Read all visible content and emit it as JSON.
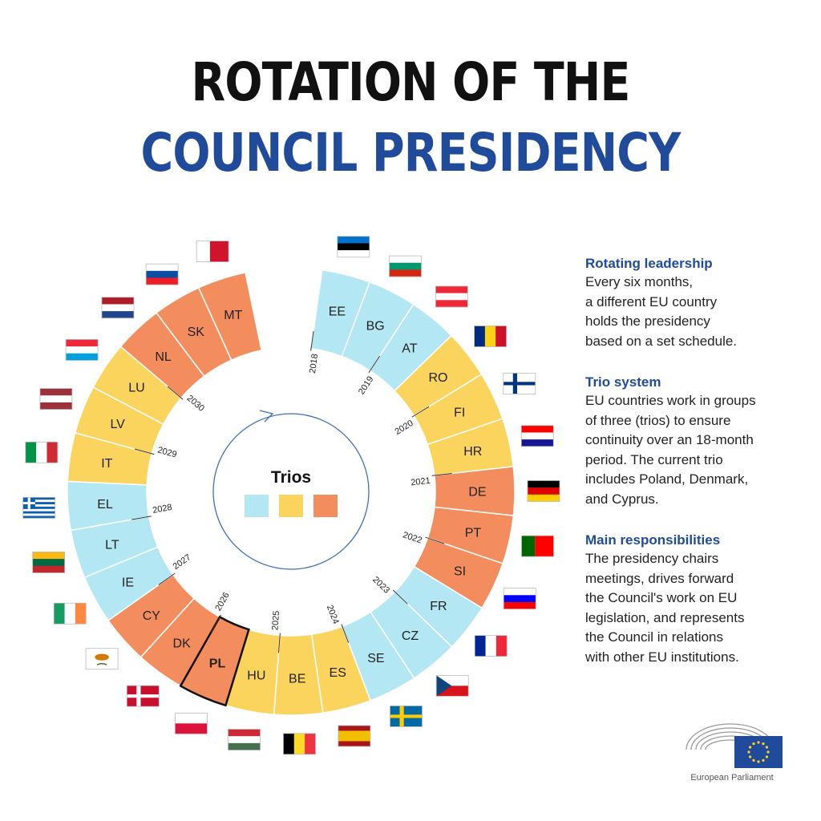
{
  "title": {
    "line1": "ROTATION OF THE",
    "line2": "COUNCIL PRESIDENCY"
  },
  "colors": {
    "blue": "#b3e7f3",
    "yellow": "#fbd45e",
    "orange": "#f48d5e",
    "accent": "#1f4b9a"
  },
  "diagram": {
    "legend_title": "Trios",
    "presidencies": [
      {
        "code": "EE",
        "trio": "blue"
      },
      {
        "code": "BG",
        "trio": "blue"
      },
      {
        "code": "AT",
        "trio": "blue"
      },
      {
        "code": "RO",
        "trio": "yellow"
      },
      {
        "code": "FI",
        "trio": "yellow"
      },
      {
        "code": "HR",
        "trio": "yellow"
      },
      {
        "code": "DE",
        "trio": "orange"
      },
      {
        "code": "PT",
        "trio": "orange"
      },
      {
        "code": "SI",
        "trio": "orange"
      },
      {
        "code": "FR",
        "trio": "blue"
      },
      {
        "code": "CZ",
        "trio": "blue"
      },
      {
        "code": "SE",
        "trio": "blue"
      },
      {
        "code": "ES",
        "trio": "yellow"
      },
      {
        "code": "BE",
        "trio": "yellow"
      },
      {
        "code": "HU",
        "trio": "yellow"
      },
      {
        "code": "PL",
        "trio": "orange",
        "current": true
      },
      {
        "code": "DK",
        "trio": "orange"
      },
      {
        "code": "CY",
        "trio": "orange"
      },
      {
        "code": "IE",
        "trio": "blue"
      },
      {
        "code": "LT",
        "trio": "blue"
      },
      {
        "code": "EL",
        "trio": "blue"
      },
      {
        "code": "IT",
        "trio": "yellow"
      },
      {
        "code": "LV",
        "trio": "yellow"
      },
      {
        "code": "LU",
        "trio": "yellow"
      },
      {
        "code": "NL",
        "trio": "orange"
      },
      {
        "code": "SK",
        "trio": "orange"
      },
      {
        "code": "MT",
        "trio": "orange"
      }
    ],
    "years": [
      "2018",
      "2019",
      "2020",
      "2021",
      "2022",
      "2023",
      "2024",
      "2025",
      "2026",
      "2027",
      "2028",
      "2029",
      "2030"
    ]
  },
  "sidebar": {
    "sections": [
      {
        "heading": "Rotating leadership",
        "body": "Every six months,\na different EU country\nholds the presidency\nbased on a set schedule."
      },
      {
        "heading": "Trio system",
        "body": "EU countries work in groups\nof three (trios) to ensure\ncontinuity over an 18-month\nperiod. The current trio\nincludes Poland, Denmark,\nand Cyprus."
      },
      {
        "heading": "Main responsibilities",
        "body": "The presidency chairs\nmeetings, drives forward\nthe Council's work on EU\nlegislation, and represents\nthe Council in relations\nwith other EU institutions."
      }
    ]
  },
  "logo": {
    "name": "European Parliament"
  }
}
